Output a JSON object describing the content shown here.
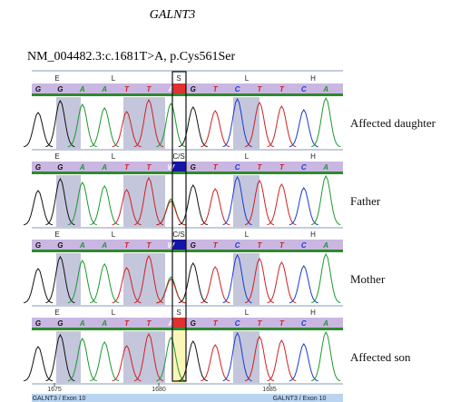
{
  "title": "GALNT3",
  "variant": "NM_004482.3:c.1681T>A, p.Cys561Ser",
  "panels": [
    {
      "label": "Affected daughter",
      "amino_acids": [
        "E",
        "L",
        "S",
        "L",
        "H"
      ],
      "bases": [
        "G",
        "G",
        "A",
        "A",
        "T",
        "T",
        "A",
        "G",
        "T",
        "C",
        "T",
        "T",
        "C",
        "A"
      ]
    },
    {
      "label": "Father",
      "amino_acids": [
        "E",
        "L",
        "C/S",
        "L",
        "H"
      ],
      "bases": [
        "G",
        "G",
        "A",
        "A",
        "T",
        "T",
        "W",
        "G",
        "T",
        "C",
        "T",
        "T",
        "C",
        "A"
      ]
    },
    {
      "label": "Mother",
      "amino_acids": [
        "E",
        "L",
        "C/S",
        "L",
        "H"
      ],
      "bases": [
        "G",
        "G",
        "A",
        "A",
        "T",
        "T",
        "W",
        "G",
        "T",
        "C",
        "T",
        "T",
        "C",
        "A"
      ]
    },
    {
      "label": "Affected son",
      "amino_acids": [
        "E",
        "L",
        "S",
        "L",
        "H"
      ],
      "bases": [
        "G",
        "G",
        "A",
        "A",
        "T",
        "T",
        "A",
        "G",
        "T",
        "C",
        "T",
        "T",
        "C",
        "A"
      ]
    }
  ],
  "axis": {
    "positions": [
      1675,
      1680,
      1685
    ],
    "exon_labels": [
      "GALNT3 / Exon 10",
      "GALNT3 / Exon 10"
    ]
  }
}
